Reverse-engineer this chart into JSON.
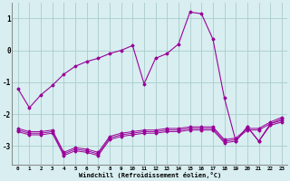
{
  "hours": [
    0,
    1,
    2,
    3,
    4,
    5,
    6,
    7,
    8,
    9,
    10,
    11,
    12,
    13,
    14,
    15,
    16,
    17,
    18,
    19,
    20,
    21,
    22,
    23
  ],
  "line1": [
    -1.2,
    -1.8,
    -1.4,
    -1.1,
    -0.75,
    -0.5,
    -0.35,
    -0.25,
    -0.1,
    0.0,
    0.15,
    -1.05,
    -0.25,
    -0.1,
    0.2,
    1.2,
    1.15,
    0.35,
    -1.5,
    -2.85,
    -2.4,
    -2.85,
    -2.35,
    -2.25
  ],
  "line2": [
    -2.55,
    -2.65,
    -2.65,
    -2.6,
    -3.3,
    -3.15,
    -3.2,
    -3.3,
    -2.8,
    -2.7,
    -2.65,
    -2.6,
    -2.6,
    -2.55,
    -2.55,
    -2.5,
    -2.5,
    -2.5,
    -2.9,
    -2.85,
    -2.4,
    -2.85,
    -2.3,
    -2.2
  ],
  "line3": [
    -2.5,
    -2.6,
    -2.6,
    -2.55,
    -3.25,
    -3.1,
    -3.15,
    -3.25,
    -2.75,
    -2.65,
    -2.6,
    -2.55,
    -2.55,
    -2.5,
    -2.5,
    -2.45,
    -2.45,
    -2.45,
    -2.85,
    -2.8,
    -2.5,
    -2.5,
    -2.3,
    -2.15
  ],
  "line4": [
    -2.45,
    -2.55,
    -2.55,
    -2.5,
    -3.2,
    -3.05,
    -3.1,
    -3.2,
    -2.7,
    -2.6,
    -2.55,
    -2.5,
    -2.5,
    -2.45,
    -2.45,
    -2.4,
    -2.4,
    -2.4,
    -2.8,
    -2.75,
    -2.45,
    -2.45,
    -2.25,
    -2.1
  ],
  "line_color": "#990099",
  "bg_color": "#d8eef0",
  "grid_color": "#aacccc",
  "xlabel": "Windchill (Refroidissement éolien,°C)",
  "ylim": [
    -3.6,
    1.5
  ],
  "yticks": [
    -3,
    -2,
    -1,
    0,
    1
  ]
}
